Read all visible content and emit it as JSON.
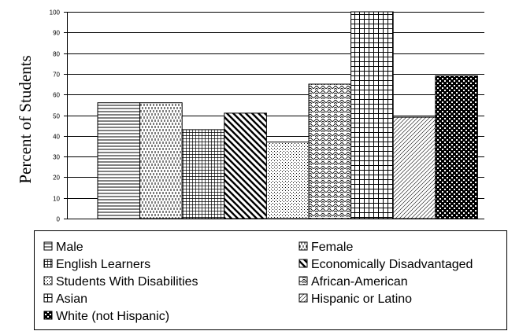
{
  "chart_data": {
    "type": "bar",
    "ylabel": "Percent of Students",
    "ylim": [
      0,
      100
    ],
    "yticks": [
      "0",
      "10",
      "20",
      "30",
      "40",
      "50",
      "60",
      "70",
      "80",
      "90",
      "100"
    ],
    "grid": true,
    "legend_position": "bottom",
    "series": [
      {
        "name": "Male",
        "value": 56,
        "pattern": "hlines"
      },
      {
        "name": "Female",
        "value": 56,
        "pattern": "vdash"
      },
      {
        "name": "English Learners",
        "value": 43,
        "pattern": "grid-fine"
      },
      {
        "name": "Economically Disadvantaged",
        "value": 51,
        "pattern": "diag-thick"
      },
      {
        "name": "Students With Disabilities",
        "value": 37,
        "pattern": "dots"
      },
      {
        "name": "African-American",
        "value": 65,
        "pattern": "scales"
      },
      {
        "name": "Asian",
        "value": 100,
        "pattern": "grid-large"
      },
      {
        "name": "Hispanic or Latino",
        "value": 49,
        "pattern": "diag-thin"
      },
      {
        "name": "White (not Hispanic)",
        "value": 69,
        "pattern": "checker"
      }
    ]
  }
}
